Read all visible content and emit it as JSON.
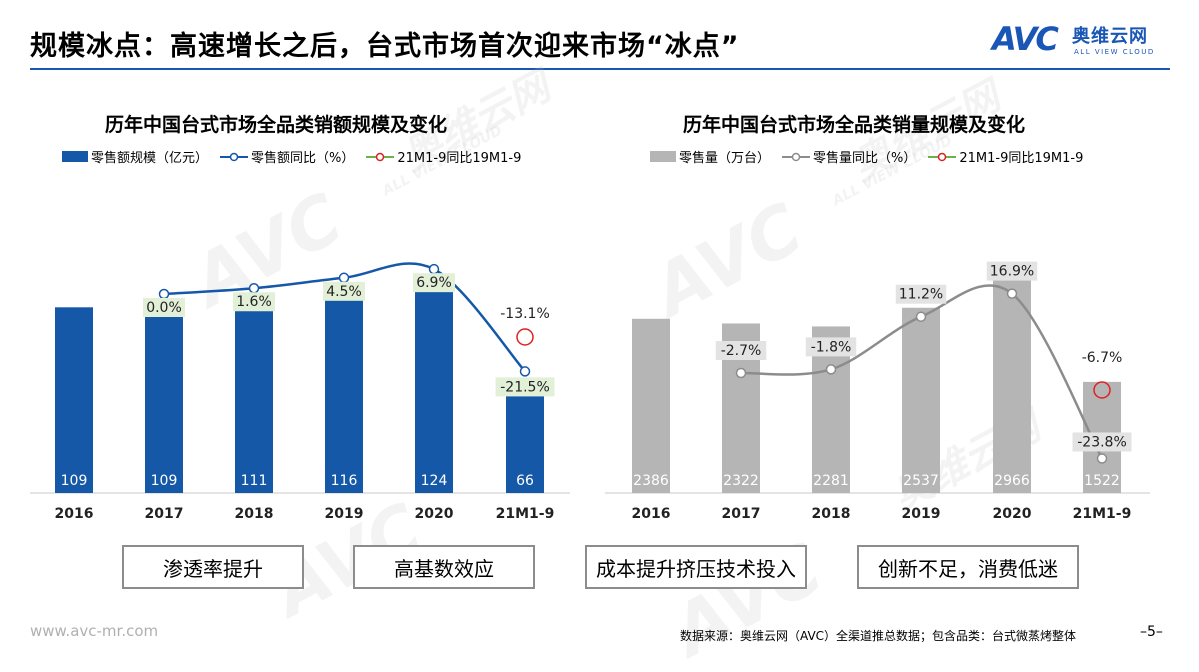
{
  "header": {
    "title": "规模冰点：高速增长之后，台式市场首次迎来市场“冰点”",
    "logo_mark": "AVC",
    "logo_cn": "奥维云网",
    "logo_en": "ALL VIEW CLOUD"
  },
  "chart_data": [
    {
      "type": "bar",
      "title": "历年中国台式市场全品类销额规模及变化",
      "categories": [
        "2016",
        "2017",
        "2018",
        "2019",
        "2020",
        "21M1-9"
      ],
      "series": [
        {
          "name": "零售额规模（亿元）",
          "type": "bar",
          "values": [
            109,
            109,
            111,
            116,
            124,
            66
          ],
          "labels": [
            "109",
            "109",
            "111",
            "116",
            "124",
            "66"
          ]
        },
        {
          "name": "零售额同比（%）",
          "type": "line",
          "values": [
            null,
            0.0,
            1.6,
            4.5,
            6.9,
            -21.5
          ],
          "labels": [
            "",
            "0.0%",
            "1.6%",
            "4.5%",
            "6.9%",
            "-21.5%"
          ]
        },
        {
          "name": "21M1-9同比19M1-9",
          "type": "point",
          "values": [
            null,
            null,
            null,
            null,
            null,
            -13.1
          ],
          "labels": [
            "",
            "",
            "",
            "",
            "",
            "-13.1%"
          ]
        }
      ],
      "bar_color": "#1658a8",
      "legend": [
        "零售额规模（亿元）",
        "零售额同比（%）",
        "21M1-9同比19M1-9"
      ]
    },
    {
      "type": "bar",
      "title": "历年中国台式市场全品类销量规模及变化",
      "categories": [
        "2016",
        "2017",
        "2018",
        "2019",
        "2020",
        "21M1-9"
      ],
      "series": [
        {
          "name": "零售量（万台）",
          "type": "bar",
          "values": [
            2386,
            2322,
            2281,
            2537,
            2966,
            1522
          ],
          "labels": [
            "2386",
            "2322",
            "2281",
            "2537",
            "2966",
            "1522"
          ]
        },
        {
          "name": "零售量同比（%）",
          "type": "line",
          "values": [
            null,
            -2.7,
            -1.8,
            11.2,
            16.9,
            -23.8
          ],
          "labels": [
            "",
            "-2.7%",
            "-1.8%",
            "11.2%",
            "16.9%",
            "-23.8%"
          ]
        },
        {
          "name": "21M1-9同比19M1-9",
          "type": "point",
          "values": [
            null,
            null,
            null,
            null,
            null,
            -6.7
          ],
          "labels": [
            "",
            "",
            "",
            "",
            "",
            "-6.7%"
          ]
        }
      ],
      "bar_color": "#b5b5b5",
      "legend": [
        "零售量（万台）",
        "零售量同比（%）",
        "21M1-9同比19M1-9"
      ]
    }
  ],
  "tags": [
    "渗透率提升",
    "高基数效应",
    "成本提升挤压技术投入",
    "创新不足，消费低迷"
  ],
  "footer": {
    "url": "www.avc-mr.com",
    "source": "数据来源：奥维云网（AVC）全渠道推总数据；包含品类：台式微蒸烤整体",
    "page": "–5–"
  },
  "watermark": {
    "mark": "AVC",
    "cn": "奥维云网",
    "en": "ALL VIEW CLOUD"
  }
}
